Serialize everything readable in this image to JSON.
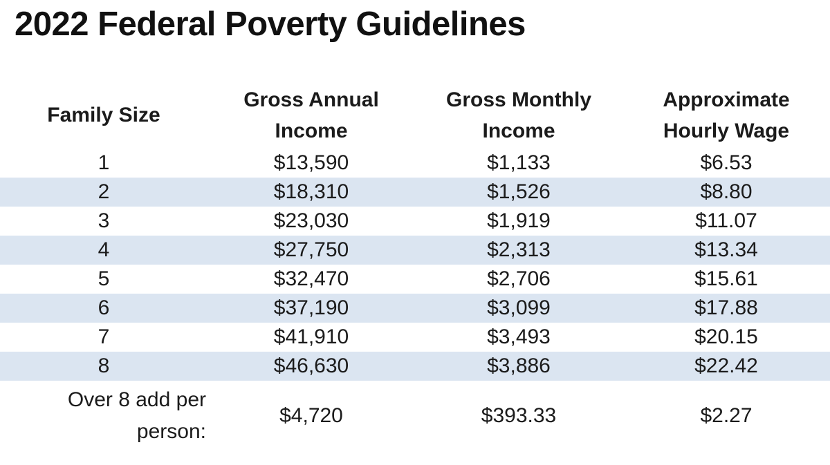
{
  "colors": {
    "background": "#ffffff",
    "stripe": "#dbe5f1",
    "text": "#1b1b1b",
    "title": "#111111"
  },
  "display": {
    "headers": [
      {
        "line1": "Family Size",
        "line2": ""
      },
      {
        "line1": "Gross Annual",
        "line2": "Income"
      },
      {
        "line1": "Gross Monthly",
        "line2": "Income"
      },
      {
        "line1": "Approximate",
        "line2": "Hourly Wage"
      }
    ],
    "footer": {
      "line1": "Over 8 add per",
      "line2": "person:"
    }
  },
  "chart_data": {
    "type": "table",
    "title": "2022 Federal Poverty Guidelines",
    "columns": [
      "Family Size",
      "Gross Annual Income",
      "Gross Monthly Income",
      "Approximate Hourly Wage"
    ],
    "rows": [
      [
        "1",
        "$13,590",
        "$1,133",
        "$6.53"
      ],
      [
        "2",
        "$18,310",
        "$1,526",
        "$8.80"
      ],
      [
        "3",
        "$23,030",
        "$1,919",
        "$11.07"
      ],
      [
        "4",
        "$27,750",
        "$2,313",
        "$13.34"
      ],
      [
        "5",
        "$32,470",
        "$2,706",
        "$15.61"
      ],
      [
        "6",
        "$37,190",
        "$3,099",
        "$17.88"
      ],
      [
        "7",
        "$41,910",
        "$3,493",
        "$20.15"
      ],
      [
        "8",
        "$46,630",
        "$3,886",
        "$22.42"
      ],
      [
        "Over 8 add per person:",
        "$4,720",
        "$393.33",
        "$2.27"
      ]
    ],
    "layout": {
      "zebra_striped_rows": [
        2,
        4,
        6,
        8
      ],
      "gridlines": false,
      "header_alignment": "center",
      "cell_alignment": "center"
    }
  }
}
